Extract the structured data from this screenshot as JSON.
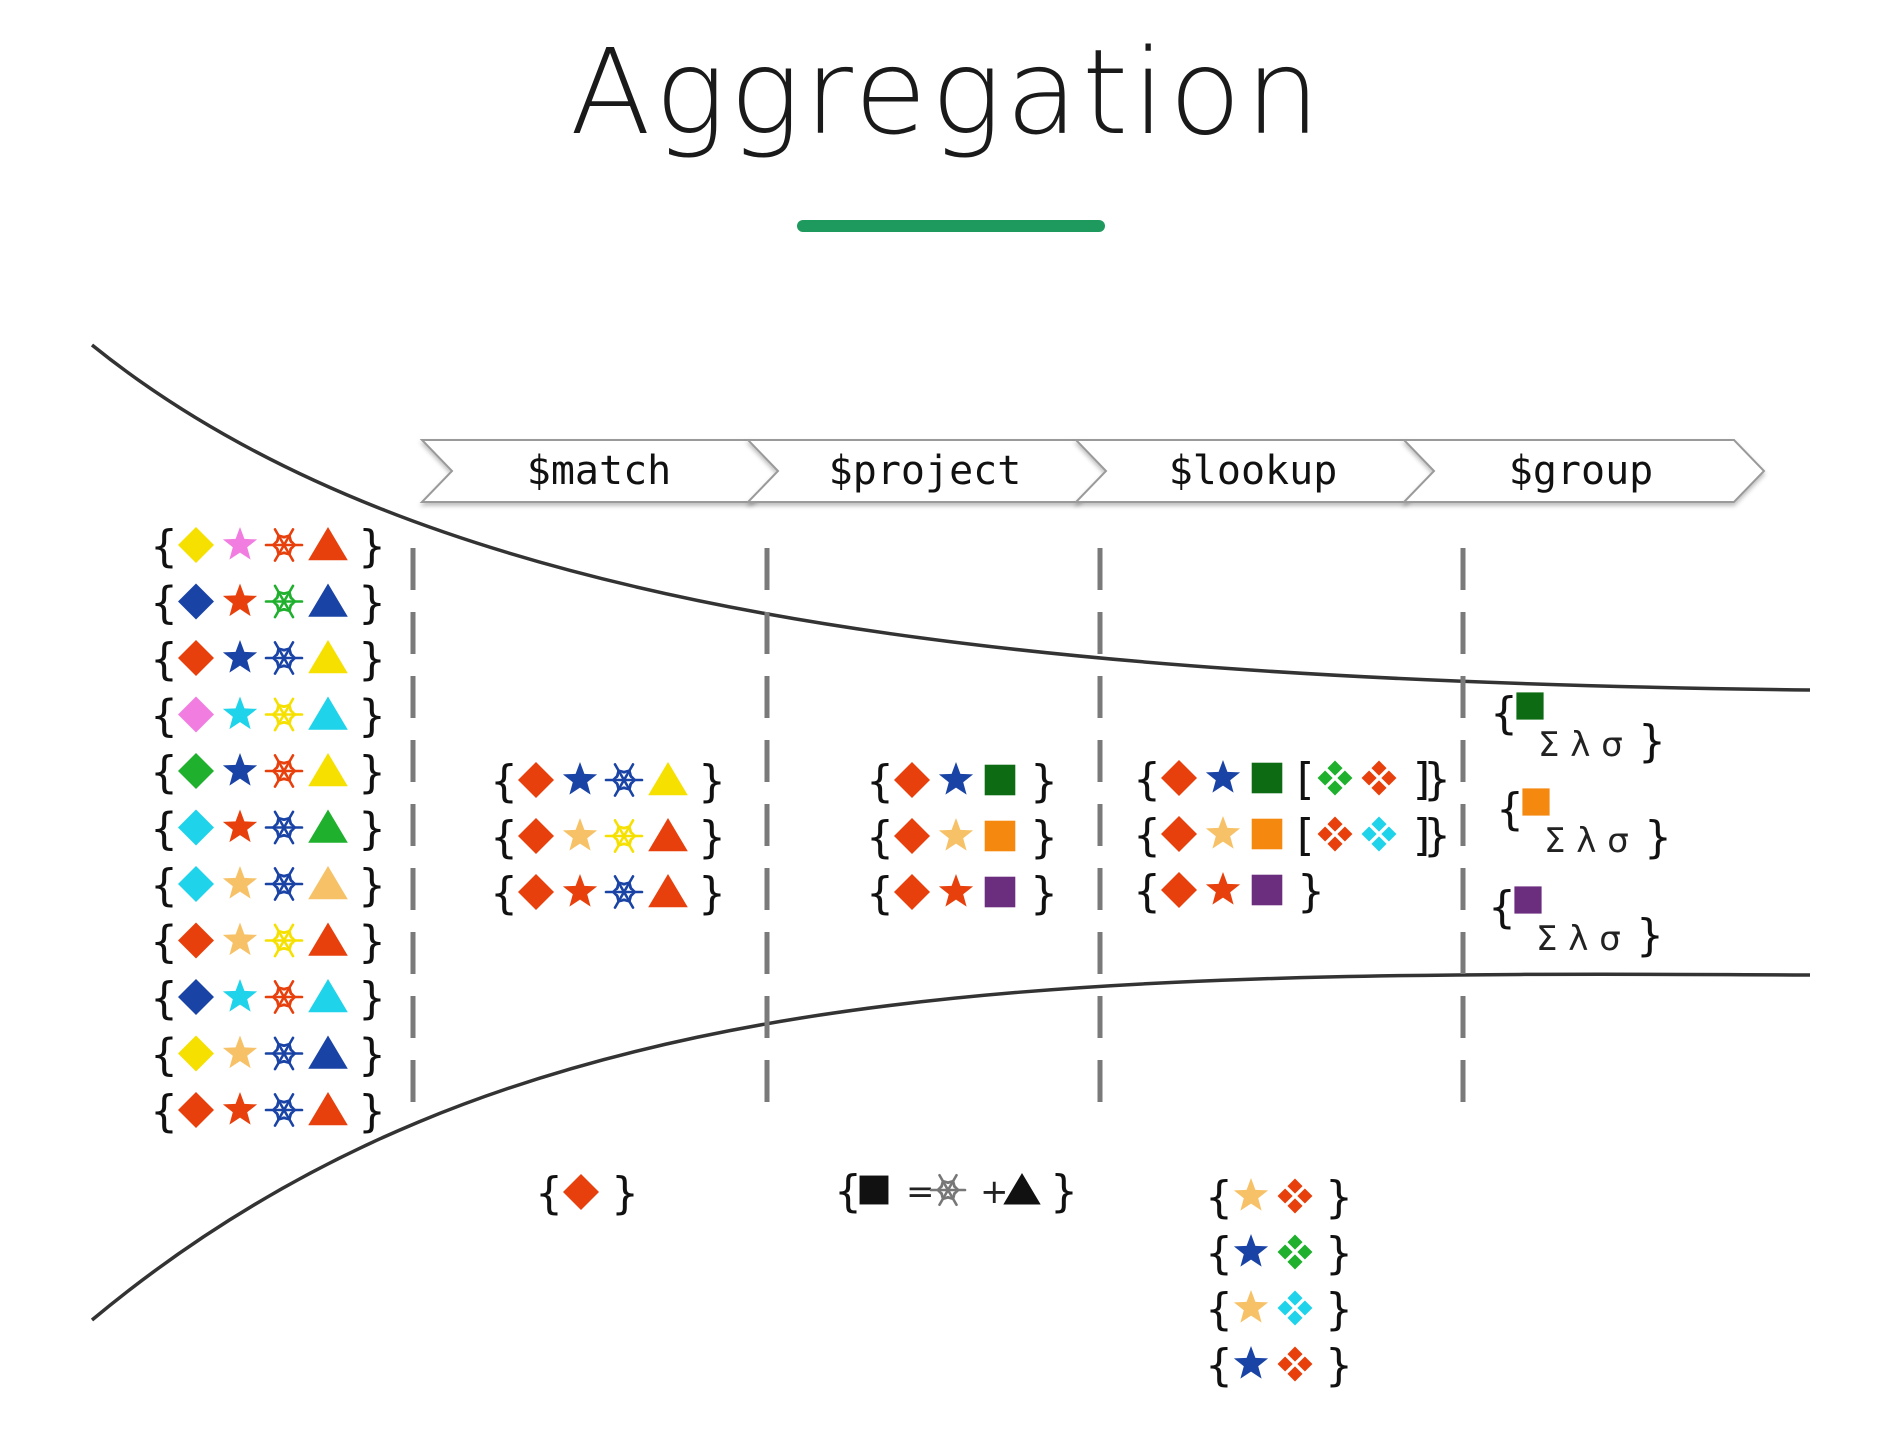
{
  "title": "Aggregation",
  "colors": {
    "accent_underline": "#1e9a5e",
    "red": "#e8400c",
    "yellow": "#f5e000",
    "pink": "#f27de0",
    "navy": "#1a43a6",
    "green": "#1fb02d",
    "cyan": "#1ed3ea",
    "light_orange": "#f7c267",
    "orange": "#f5890f",
    "dark_green": "#0d6c13",
    "purple": "#6b2d7e",
    "black": "#111111"
  },
  "stages": [
    "$match",
    "$project",
    "$lookup",
    "$group"
  ],
  "input_documents": [
    [
      [
        "diamond",
        "yellow"
      ],
      [
        "star",
        "pink"
      ],
      [
        "snowflake",
        "red"
      ],
      [
        "triangle",
        "red"
      ]
    ],
    [
      [
        "diamond",
        "navy"
      ],
      [
        "star",
        "red"
      ],
      [
        "snowflake",
        "green"
      ],
      [
        "triangle",
        "navy"
      ]
    ],
    [
      [
        "diamond",
        "red"
      ],
      [
        "star",
        "navy"
      ],
      [
        "snowflake",
        "navy"
      ],
      [
        "triangle",
        "yellow"
      ]
    ],
    [
      [
        "diamond",
        "pink"
      ],
      [
        "star",
        "cyan"
      ],
      [
        "snowflake",
        "yellow"
      ],
      [
        "triangle",
        "cyan"
      ]
    ],
    [
      [
        "diamond",
        "green"
      ],
      [
        "star",
        "navy"
      ],
      [
        "snowflake",
        "red"
      ],
      [
        "triangle",
        "yellow"
      ]
    ],
    [
      [
        "diamond",
        "cyan"
      ],
      [
        "star",
        "red"
      ],
      [
        "snowflake",
        "navy"
      ],
      [
        "triangle",
        "green"
      ]
    ],
    [
      [
        "diamond",
        "cyan"
      ],
      [
        "star",
        "light_orange"
      ],
      [
        "snowflake",
        "navy"
      ],
      [
        "triangle",
        "light_orange"
      ]
    ],
    [
      [
        "diamond",
        "red"
      ],
      [
        "star",
        "light_orange"
      ],
      [
        "snowflake",
        "yellow"
      ],
      [
        "triangle",
        "red"
      ]
    ],
    [
      [
        "diamond",
        "navy"
      ],
      [
        "star",
        "cyan"
      ],
      [
        "snowflake",
        "red"
      ],
      [
        "triangle",
        "cyan"
      ]
    ],
    [
      [
        "diamond",
        "yellow"
      ],
      [
        "star",
        "light_orange"
      ],
      [
        "snowflake",
        "navy"
      ],
      [
        "triangle",
        "navy"
      ]
    ],
    [
      [
        "diamond",
        "red"
      ],
      [
        "star",
        "red"
      ],
      [
        "snowflake",
        "navy"
      ],
      [
        "triangle",
        "red"
      ]
    ]
  ],
  "match_output": [
    [
      [
        "diamond",
        "red"
      ],
      [
        "star",
        "navy"
      ],
      [
        "snowflake",
        "navy"
      ],
      [
        "triangle",
        "yellow"
      ]
    ],
    [
      [
        "diamond",
        "red"
      ],
      [
        "star",
        "light_orange"
      ],
      [
        "snowflake",
        "yellow"
      ],
      [
        "triangle",
        "red"
      ]
    ],
    [
      [
        "diamond",
        "red"
      ],
      [
        "star",
        "red"
      ],
      [
        "snowflake",
        "navy"
      ],
      [
        "triangle",
        "red"
      ]
    ]
  ],
  "project_output": [
    [
      [
        "diamond",
        "red"
      ],
      [
        "star",
        "navy"
      ],
      [
        "square",
        "dark_green"
      ]
    ],
    [
      [
        "diamond",
        "red"
      ],
      [
        "star",
        "light_orange"
      ],
      [
        "square",
        "orange"
      ]
    ],
    [
      [
        "diamond",
        "red"
      ],
      [
        "star",
        "red"
      ],
      [
        "square",
        "purple"
      ]
    ]
  ],
  "lookup_output": [
    {
      "fields": [
        [
          "diamond",
          "red"
        ],
        [
          "star",
          "navy"
        ],
        [
          "square",
          "dark_green"
        ]
      ],
      "array": [
        [
          "clover",
          "green"
        ],
        [
          "clover",
          "red"
        ]
      ]
    },
    {
      "fields": [
        [
          "diamond",
          "red"
        ],
        [
          "star",
          "light_orange"
        ],
        [
          "square",
          "orange"
        ]
      ],
      "array": [
        [
          "clover",
          "red"
        ],
        [
          "clover",
          "cyan"
        ]
      ]
    },
    {
      "fields": [
        [
          "diamond",
          "red"
        ],
        [
          "star",
          "red"
        ],
        [
          "square",
          "purple"
        ]
      ],
      "array": null
    }
  ],
  "group_output": [
    {
      "key": [
        "square",
        "dark_green"
      ],
      "ops": "Σ λ σ"
    },
    {
      "key": [
        "square",
        "orange"
      ],
      "ops": "Σ λ σ"
    },
    {
      "key": [
        "square",
        "purple"
      ],
      "ops": "Σ λ σ"
    }
  ],
  "match_criteria": [
    [
      "diamond",
      "red"
    ]
  ],
  "project_expression": {
    "parts": [
      [
        "square",
        "black"
      ],
      [
        "text",
        "="
      ],
      [
        "snowflake",
        "white"
      ],
      [
        "text",
        "+"
      ],
      [
        "triangle",
        "black"
      ]
    ]
  },
  "lookup_foreign": [
    [
      [
        "star",
        "light_orange"
      ],
      [
        "clover",
        "red"
      ]
    ],
    [
      [
        "star",
        "navy"
      ],
      [
        "clover",
        "green"
      ]
    ],
    [
      [
        "star",
        "light_orange"
      ],
      [
        "clover",
        "cyan"
      ]
    ],
    [
      [
        "star",
        "navy"
      ],
      [
        "clover",
        "red"
      ]
    ]
  ]
}
